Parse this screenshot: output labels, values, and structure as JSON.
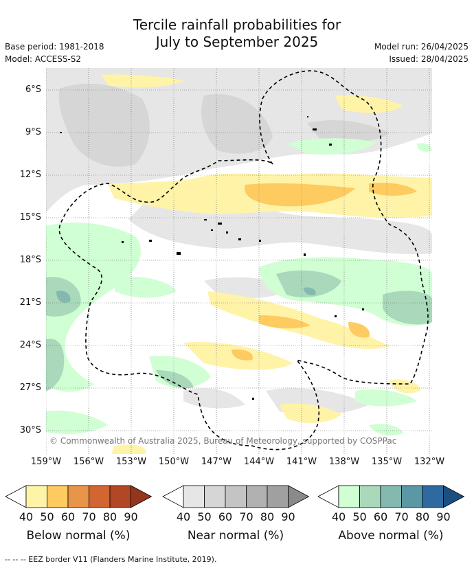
{
  "title_line1": "Tercile rainfall probabilities for",
  "title_line2": "July to September 2025",
  "base_period": "Base period: 1981-2018",
  "model": "Model: ACCESS-S2",
  "model_run": "Model run: 26/04/2025",
  "issued": "Issued: 28/04/2025",
  "copyright": "© Commonwealth of Australia 2025, Bureau of Meteorology, supported by COSPPac",
  "lat_labels": [
    "6°S",
    "9°S",
    "12°S",
    "15°S",
    "18°S",
    "21°S",
    "24°S",
    "27°S",
    "30°S"
  ],
  "lon_labels": [
    "159°W",
    "156°W",
    "153°W",
    "150°W",
    "147°W",
    "144°W",
    "141°W",
    "138°W",
    "135°W",
    "132°W"
  ],
  "colorbars": [
    {
      "title": "Below normal (%)",
      "ticks": [
        "40",
        "50",
        "60",
        "70",
        "80",
        "90"
      ],
      "colors": [
        "#fff3a8",
        "#fecb60",
        "#e8954a",
        "#d16632",
        "#b14726",
        "#94351d"
      ]
    },
    {
      "title": "Near normal (%)",
      "ticks": [
        "40",
        "50",
        "60",
        "70",
        "80",
        "90"
      ],
      "colors": [
        "#e6e6e6",
        "#d6d6d6",
        "#c4c4c4",
        "#b1b1b1",
        "#a0a0a0",
        "#8a8a8a"
      ]
    },
    {
      "title": "Above normal (%)",
      "ticks": [
        "40",
        "50",
        "60",
        "70",
        "80",
        "90"
      ],
      "colors": [
        "#cfffd3",
        "#a9d8bb",
        "#84b9b0",
        "#5b98a5",
        "#2e6a9f",
        "#1b4f80"
      ]
    }
  ],
  "footnote": "--  --  -- EEZ border V11 (Flanders Marine Institute, 2019)."
}
